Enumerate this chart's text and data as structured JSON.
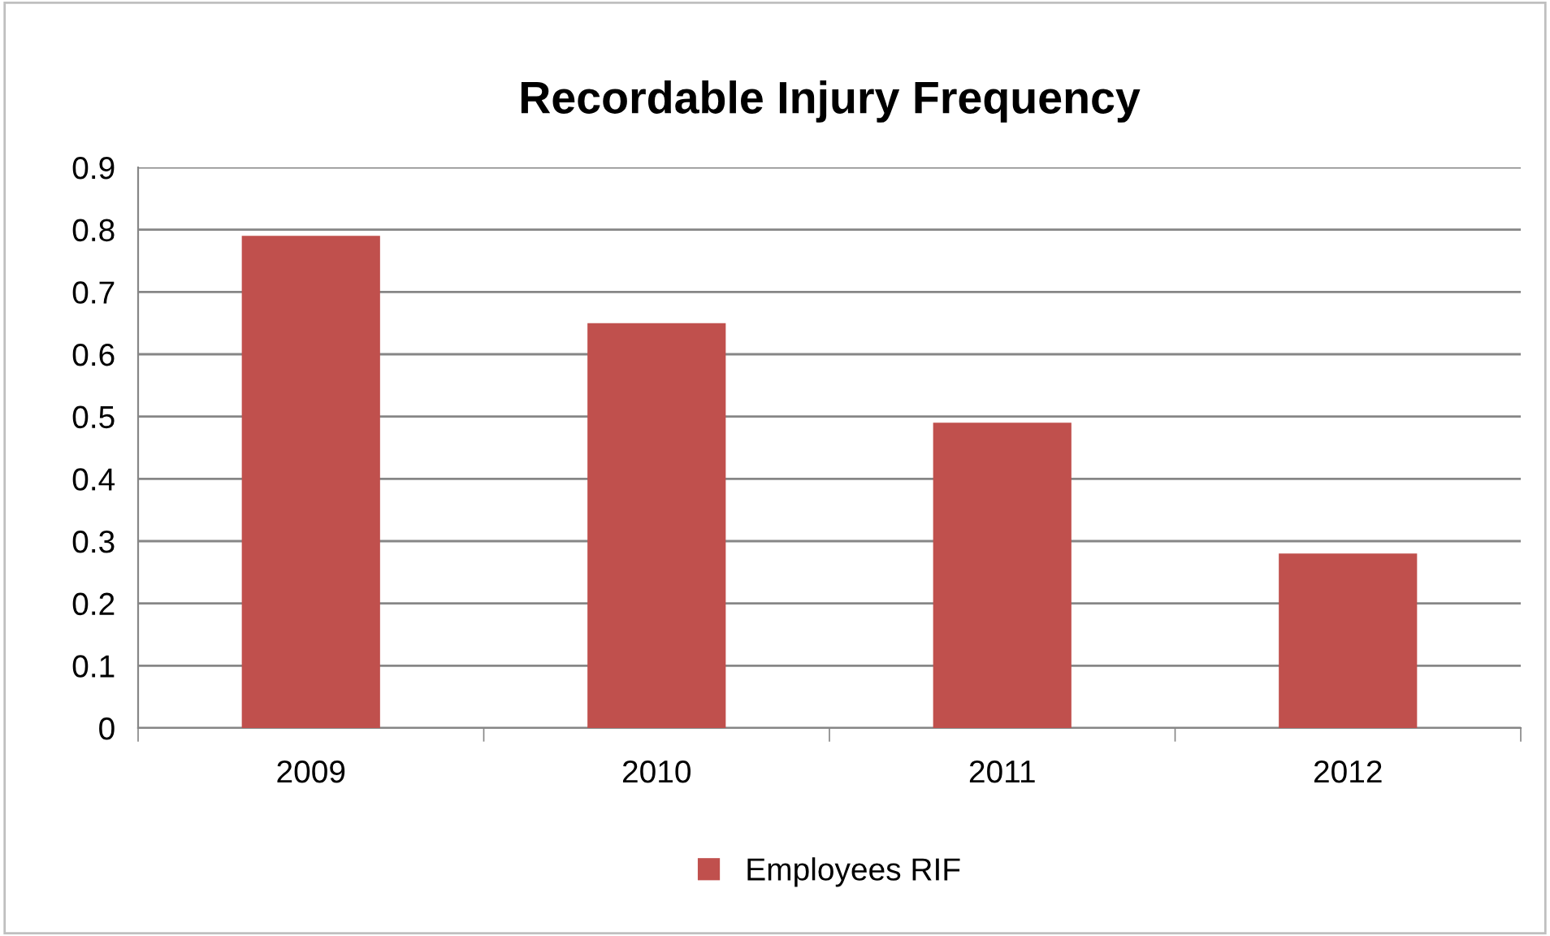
{
  "chart_data": {
    "type": "bar",
    "title": "Recordable Injury Frequency",
    "categories": [
      "2009",
      "2010",
      "2011",
      "2012"
    ],
    "series": [
      {
        "name": "Employees RIF",
        "color": "#c0504d",
        "values": [
          0.79,
          0.65,
          0.49,
          0.28
        ]
      }
    ],
    "ylim": [
      0,
      0.9
    ],
    "yticks": [
      0,
      0.1,
      0.2,
      0.3,
      0.4,
      0.5,
      0.6,
      0.7,
      0.8,
      0.9
    ],
    "grid": "y",
    "legend": "bottom"
  }
}
